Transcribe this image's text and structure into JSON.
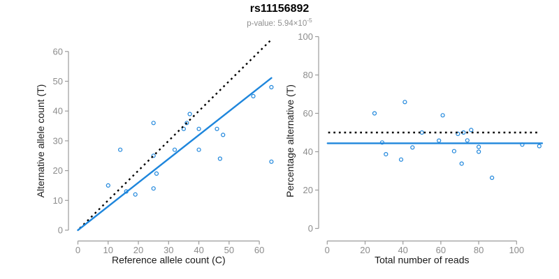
{
  "header": {
    "title": "rs11156892",
    "pvalue_prefix": "p-value: 5.94×10",
    "pvalue_exponent": "-5"
  },
  "colors": {
    "accent": "#1e86dc",
    "axis": "#9b9b9b",
    "tick_label": "#8c8c8c",
    "axis_title": "#1a1a1a",
    "dotted_line": "#000000",
    "title": "#000000",
    "subtitle": "#909090"
  },
  "chart_data": [
    {
      "type": "scatter",
      "name": "allele-counts",
      "marker": "open-circle",
      "xlabel": "Reference allele count (C)",
      "ylabel": "Alternative allele count (T)",
      "xlim": [
        0,
        65
      ],
      "ylim": [
        0,
        64
      ],
      "xticks": [
        0,
        10,
        20,
        30,
        40,
        50,
        60
      ],
      "yticks": [
        0,
        10,
        20,
        30,
        40,
        50,
        60
      ],
      "grid": false,
      "legend": "none",
      "points": [
        [
          10,
          15
        ],
        [
          14,
          27
        ],
        [
          16,
          13
        ],
        [
          19,
          12
        ],
        [
          25,
          14
        ],
        [
          25,
          25
        ],
        [
          25,
          36
        ],
        [
          26,
          19
        ],
        [
          32,
          27
        ],
        [
          35,
          34
        ],
        [
          36,
          36
        ],
        [
          37,
          39
        ],
        [
          40,
          27
        ],
        [
          40,
          34
        ],
        [
          46,
          34
        ],
        [
          47,
          24
        ],
        [
          48,
          32
        ],
        [
          58,
          45
        ],
        [
          64,
          23
        ],
        [
          64,
          48
        ]
      ],
      "lines": [
        {
          "name": "identity-line",
          "style": "dotted",
          "x1": 0.6,
          "y1": 0.6,
          "x2": 64,
          "y2": 64
        },
        {
          "name": "regression-line",
          "style": "solid",
          "x1": 0,
          "y1": 0,
          "x2": 64,
          "y2": 51.1
        }
      ]
    },
    {
      "type": "scatter",
      "name": "percentage-vs-reads",
      "marker": "open-circle",
      "xlabel": "Total number of reads",
      "ylabel": "Percentage alternative (T)",
      "xlim": [
        0,
        117
      ],
      "ylim": [
        0,
        100
      ],
      "xticks": [
        0,
        20,
        40,
        60,
        80,
        100
      ],
      "yticks": [
        0,
        20,
        40,
        60,
        80,
        100
      ],
      "grid": false,
      "legend": "none",
      "points": [
        [
          25,
          60.0
        ],
        [
          29,
          44.8
        ],
        [
          31,
          38.7
        ],
        [
          39,
          35.9
        ],
        [
          41,
          65.9
        ],
        [
          45,
          42.2
        ],
        [
          50,
          50.0
        ],
        [
          59,
          45.8
        ],
        [
          61,
          59.0
        ],
        [
          67,
          40.3
        ],
        [
          69,
          49.3
        ],
        [
          71,
          33.8
        ],
        [
          72,
          50.0
        ],
        [
          74,
          45.9
        ],
        [
          76,
          51.3
        ],
        [
          80,
          42.5
        ],
        [
          80,
          40.0
        ],
        [
          87,
          26.4
        ],
        [
          103,
          43.7
        ],
        [
          112,
          42.9
        ]
      ],
      "lines": [
        {
          "name": "fifty-percent-line",
          "style": "dotted",
          "x1": 0.5,
          "y1": 50,
          "x2": 111.5,
          "y2": 50
        },
        {
          "name": "mean-percentage-line",
          "style": "solid",
          "x1": 0.2,
          "y1": 44.4,
          "x2": 113.5,
          "y2": 44.4
        }
      ]
    }
  ]
}
